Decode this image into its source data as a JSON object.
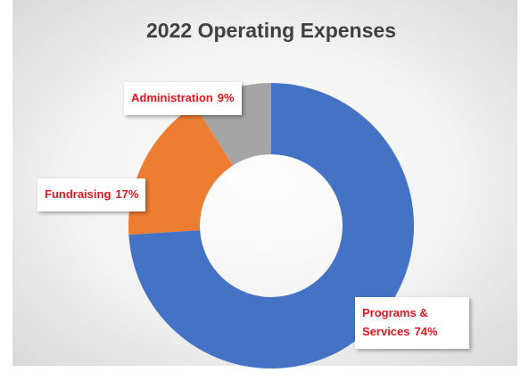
{
  "chart_data": {
    "type": "donut",
    "title": "2022 Operating Expenses",
    "categories": [
      "Programs & Services",
      "Fundraising",
      "Administration"
    ],
    "values": [
      74,
      17,
      9
    ],
    "value_labels": [
      "74%",
      "17%",
      "9%"
    ],
    "colors": [
      "#4472c4",
      "#ed7d31",
      "#a5a5a5"
    ]
  }
}
